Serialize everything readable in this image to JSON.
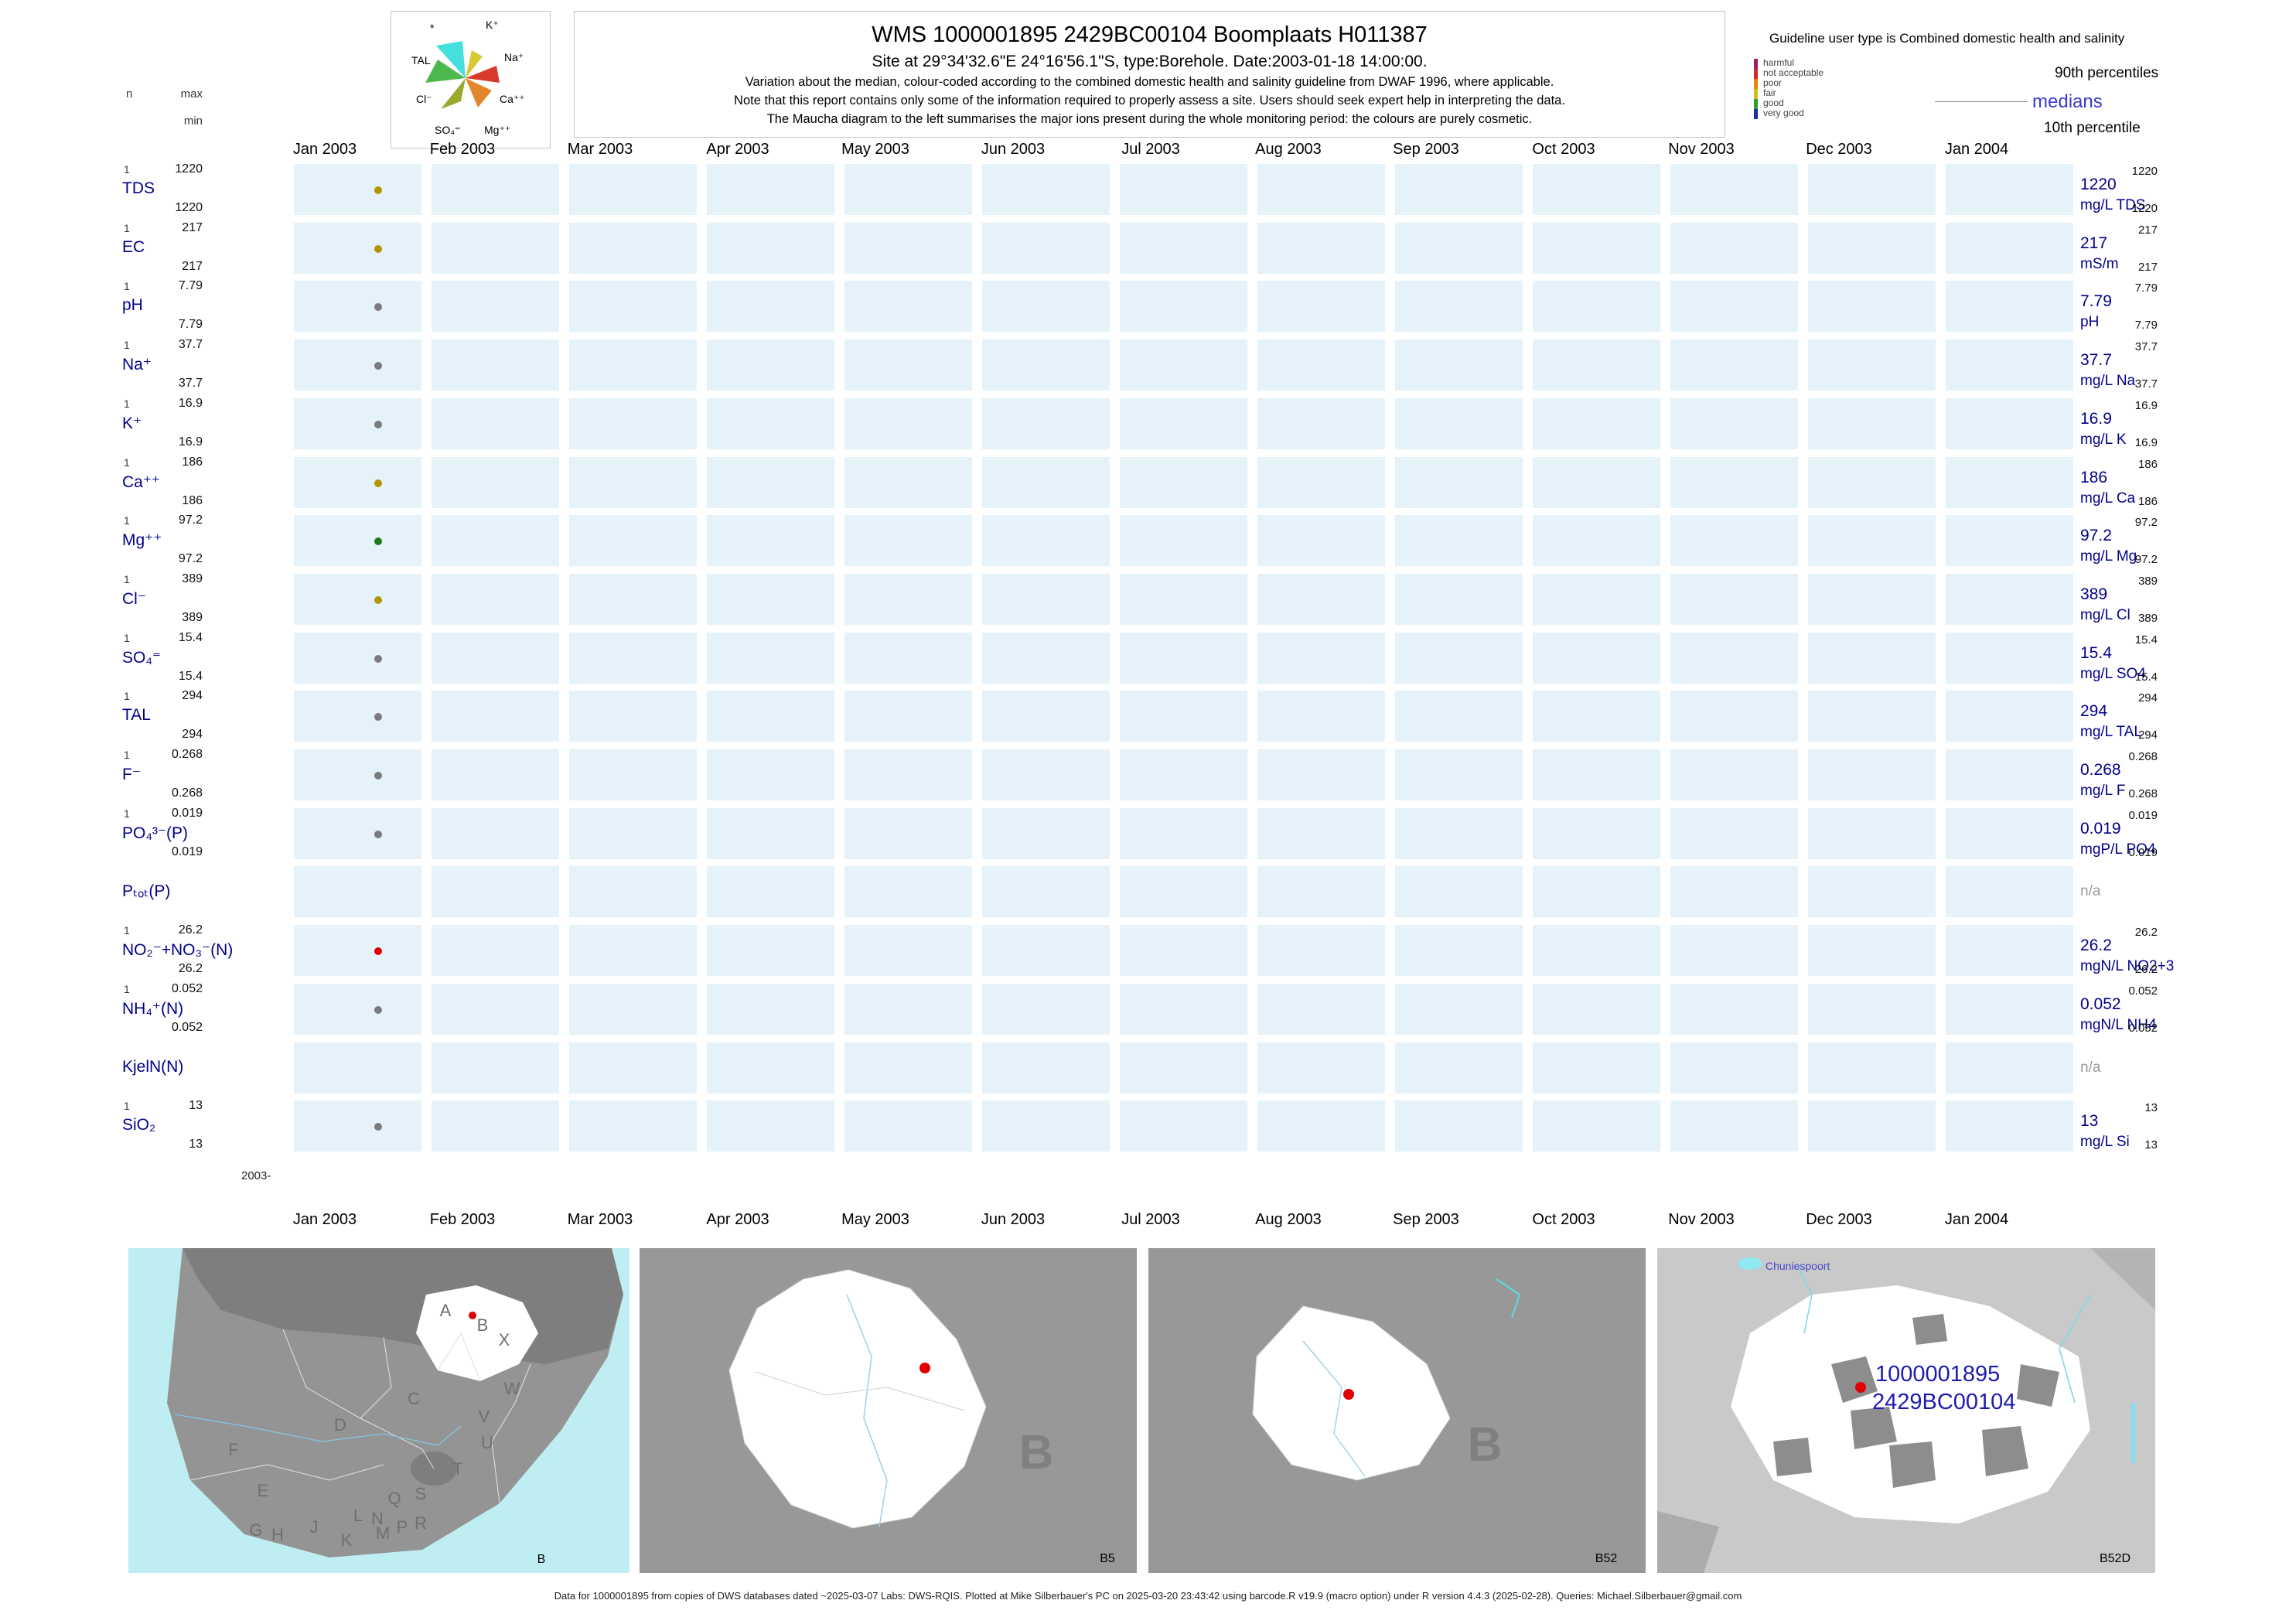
{
  "header": {
    "title": "WMS 1000001895 2429BC00104 Boomplaats H011387",
    "subtitle": "Site at 29°34'32.6\"E 24°16'56.1\"S, type:Borehole. Date:2003-01-18 14:00:00.",
    "note1": "Variation about the median,  colour-coded according to the combined domestic health and salinity guideline from DWAF 1996, where applicable.",
    "note2": "Note that this report contains only some of the information required to properly assess a site. Users should seek expert help in interpreting the data.",
    "note3": "The Maucha diagram to the left summarises the major ions present during the whole monitoring period: the colours are purely cosmetic."
  },
  "maucha": {
    "labels": {
      "star": "*",
      "K": "K⁺",
      "TAL": "TAL",
      "Na": "Na⁺",
      "Cl": "Cl⁻",
      "Ca": "Ca⁺⁺",
      "SO4": "SO₄⁼",
      "Mg": "Mg⁺⁺"
    }
  },
  "legend": {
    "guideline": "Guideline user type is Combined domestic health and salinity",
    "categories": [
      {
        "label": "harmful",
        "color": "#9e1f63"
      },
      {
        "label": "not acceptable",
        "color": "#d62728"
      },
      {
        "label": "poor",
        "color": "#e8820c"
      },
      {
        "label": "fair",
        "color": "#cfc01f"
      },
      {
        "label": "good",
        "color": "#2ca02c"
      },
      {
        "label": "very good",
        "color": "#1f2f9e"
      }
    ],
    "p90": "90th percentiles",
    "median": "medians",
    "p10": "10th percentile"
  },
  "axis": {
    "months": [
      "Jan 2003",
      "Feb 2003",
      "Mar 2003",
      "Apr 2003",
      "May 2003",
      "Jun 2003",
      "Jul 2003",
      "Aug 2003",
      "Sep 2003",
      "Oct 2003",
      "Nov 2003",
      "Dec 2003",
      "Jan 2004"
    ],
    "origin_label": "2003-",
    "col_n": "n",
    "col_max": "max",
    "col_min": "min"
  },
  "na_label": "n/a",
  "rows": [
    {
      "label": "TDS",
      "n": "1",
      "max": "1220",
      "min": "1220",
      "p90": "1220",
      "median": "1220",
      "p10": "1220",
      "unit": "mg/L TDS",
      "dot": "#b39500",
      "na": false
    },
    {
      "label": "EC",
      "n": "1",
      "max": "217",
      "min": "217",
      "p90": "217",
      "median": "217",
      "p10": "217",
      "unit": "mS/m",
      "dot": "#b39500",
      "na": false
    },
    {
      "label": "pH",
      "n": "1",
      "max": "7.79",
      "min": "7.79",
      "p90": "7.79",
      "median": "7.79",
      "p10": "7.79",
      "unit": "pH",
      "dot": "#7a7a7a",
      "na": false
    },
    {
      "label": "Na⁺",
      "n": "1",
      "max": "37.7",
      "min": "37.7",
      "p90": "37.7",
      "median": "37.7",
      "p10": "37.7",
      "unit": "mg/L Na",
      "dot": "#7a7a7a",
      "na": false
    },
    {
      "label": "K⁺",
      "n": "1",
      "max": "16.9",
      "min": "16.9",
      "p90": "16.9",
      "median": "16.9",
      "p10": "16.9",
      "unit": "mg/L K",
      "dot": "#7a7a7a",
      "na": false
    },
    {
      "label": "Ca⁺⁺",
      "n": "1",
      "max": "186",
      "min": "186",
      "p90": "186",
      "median": "186",
      "p10": "186",
      "unit": "mg/L Ca",
      "dot": "#b39500",
      "na": false
    },
    {
      "label": "Mg⁺⁺",
      "n": "1",
      "max": "97.2",
      "min": "97.2",
      "p90": "97.2",
      "median": "97.2",
      "p10": "97.2",
      "unit": "mg/L Mg",
      "dot": "#1f7a1f",
      "na": false
    },
    {
      "label": "Cl⁻",
      "n": "1",
      "max": "389",
      "min": "389",
      "p90": "389",
      "median": "389",
      "p10": "389",
      "unit": "mg/L Cl",
      "dot": "#b39500",
      "na": false
    },
    {
      "label": "SO₄⁼",
      "n": "1",
      "max": "15.4",
      "min": "15.4",
      "p90": "15.4",
      "median": "15.4",
      "p10": "15.4",
      "unit": "mg/L SO4",
      "dot": "#7a7a7a",
      "na": false
    },
    {
      "label": "TAL",
      "n": "1",
      "max": "294",
      "min": "294",
      "p90": "294",
      "median": "294",
      "p10": "294",
      "unit": "mg/L TAL",
      "dot": "#7a7a7a",
      "na": false
    },
    {
      "label": "F⁻",
      "n": "1",
      "max": "0.268",
      "min": "0.268",
      "p90": "0.268",
      "median": "0.268",
      "p10": "0.268",
      "unit": "mg/L F",
      "dot": "#7a7a7a",
      "na": false
    },
    {
      "label": "PO₄³⁻(P)",
      "n": "1",
      "max": "0.019",
      "min": "0.019",
      "p90": "0.019",
      "median": "0.019",
      "p10": "0.019",
      "unit": "mgP/L PO4",
      "dot": "#7a7a7a",
      "na": false
    },
    {
      "label": "Pₜₒₜ(P)",
      "n": "",
      "max": "",
      "min": "",
      "p90": "",
      "median": "",
      "p10": "",
      "unit": "",
      "dot": "",
      "na": true
    },
    {
      "label": "NO₂⁻+NO₃⁻(N)",
      "n": "1",
      "max": "26.2",
      "min": "26.2",
      "p90": "26.2",
      "median": "26.2",
      "p10": "26.2",
      "unit": "mgN/L NO2+3",
      "dot": "#e00000",
      "na": false
    },
    {
      "label": "NH₄⁺(N)",
      "n": "1",
      "max": "0.052",
      "min": "0.052",
      "p90": "0.052",
      "median": "0.052",
      "p10": "0.052",
      "unit": "mgN/L NH4",
      "dot": "#7a7a7a",
      "na": false
    },
    {
      "label": "KjelN(N)",
      "n": "",
      "max": "",
      "min": "",
      "p90": "",
      "median": "",
      "p10": "",
      "unit": "",
      "dot": "",
      "na": true
    },
    {
      "label": "SiO₂",
      "n": "1",
      "max": "13",
      "min": "13",
      "p90": "13",
      "median": "13",
      "p10": "13",
      "unit": "mg/L Si",
      "dot": "#7a7a7a",
      "na": false
    }
  ],
  "maps": {
    "sa_letters": [
      "A",
      "B",
      "C",
      "D",
      "E",
      "F",
      "G",
      "H",
      "J",
      "K",
      "L",
      "M",
      "N",
      "P",
      "Q",
      "R",
      "S",
      "T",
      "U",
      "V",
      "W",
      "X"
    ],
    "watermark": "B",
    "panels": [
      {
        "label": "B"
      },
      {
        "label": "B5"
      },
      {
        "label": "B52"
      },
      {
        "label": "B52D"
      }
    ],
    "site_ids": [
      "1000001895",
      "2429BC00104"
    ],
    "town": "Chuniespoort"
  },
  "footer": "Data for 1000001895 from copies of DWS databases dated ~2025-03-07 Labs: DWS-RQIS. Plotted at Mike Silberbauer's PC on 2025-03-20 23:43:42 using barcode.R v19.9 (macro option) under R version 4.4.3 (2025-02-28). Queries: Michael.Silberbauer@gmail.com",
  "chart_data": {
    "type": "scatter",
    "title": "WMS 1000001895 2429BC00104 Boomplaats H011387",
    "site_type": "Borehole",
    "sample_datetime": "2003-01-18 14:00:00",
    "x_axis_range": [
      "Jan 2003",
      "Jan 2004"
    ],
    "n_samples": 1,
    "series": [
      {
        "name": "TDS",
        "unit": "mg/L TDS",
        "n": 1,
        "min": 1220,
        "max": 1220,
        "median": 1220,
        "p90": 1220,
        "p10": 1220,
        "points": [
          {
            "date": "2003-01-18",
            "value": 1220
          }
        ]
      },
      {
        "name": "EC",
        "unit": "mS/m",
        "n": 1,
        "min": 217,
        "max": 217,
        "median": 217,
        "p90": 217,
        "p10": 217,
        "points": [
          {
            "date": "2003-01-18",
            "value": 217
          }
        ]
      },
      {
        "name": "pH",
        "unit": "pH",
        "n": 1,
        "min": 7.79,
        "max": 7.79,
        "median": 7.79,
        "p90": 7.79,
        "p10": 7.79,
        "points": [
          {
            "date": "2003-01-18",
            "value": 7.79
          }
        ]
      },
      {
        "name": "Na",
        "unit": "mg/L Na",
        "n": 1,
        "min": 37.7,
        "max": 37.7,
        "median": 37.7,
        "p90": 37.7,
        "p10": 37.7,
        "points": [
          {
            "date": "2003-01-18",
            "value": 37.7
          }
        ]
      },
      {
        "name": "K",
        "unit": "mg/L K",
        "n": 1,
        "min": 16.9,
        "max": 16.9,
        "median": 16.9,
        "p90": 16.9,
        "p10": 16.9,
        "points": [
          {
            "date": "2003-01-18",
            "value": 16.9
          }
        ]
      },
      {
        "name": "Ca",
        "unit": "mg/L Ca",
        "n": 1,
        "min": 186,
        "max": 186,
        "median": 186,
        "p90": 186,
        "p10": 186,
        "points": [
          {
            "date": "2003-01-18",
            "value": 186
          }
        ]
      },
      {
        "name": "Mg",
        "unit": "mg/L Mg",
        "n": 1,
        "min": 97.2,
        "max": 97.2,
        "median": 97.2,
        "p90": 97.2,
        "p10": 97.2,
        "points": [
          {
            "date": "2003-01-18",
            "value": 97.2
          }
        ]
      },
      {
        "name": "Cl",
        "unit": "mg/L Cl",
        "n": 1,
        "min": 389,
        "max": 389,
        "median": 389,
        "p90": 389,
        "p10": 389,
        "points": [
          {
            "date": "2003-01-18",
            "value": 389
          }
        ]
      },
      {
        "name": "SO4",
        "unit": "mg/L SO4",
        "n": 1,
        "min": 15.4,
        "max": 15.4,
        "median": 15.4,
        "p90": 15.4,
        "p10": 15.4,
        "points": [
          {
            "date": "2003-01-18",
            "value": 15.4
          }
        ]
      },
      {
        "name": "TAL",
        "unit": "mg/L TAL",
        "n": 1,
        "min": 294,
        "max": 294,
        "median": 294,
        "p90": 294,
        "p10": 294,
        "points": [
          {
            "date": "2003-01-18",
            "value": 294
          }
        ]
      },
      {
        "name": "F",
        "unit": "mg/L F",
        "n": 1,
        "min": 0.268,
        "max": 0.268,
        "median": 0.268,
        "p90": 0.268,
        "p10": 0.268,
        "points": [
          {
            "date": "2003-01-18",
            "value": 0.268
          }
        ]
      },
      {
        "name": "PO4-P",
        "unit": "mgP/L PO4",
        "n": 1,
        "min": 0.019,
        "max": 0.019,
        "median": 0.019,
        "p90": 0.019,
        "p10": 0.019,
        "points": [
          {
            "date": "2003-01-18",
            "value": 0.019
          }
        ]
      },
      {
        "name": "Ptot-P",
        "unit": "",
        "n": 0,
        "points": []
      },
      {
        "name": "NO2+NO3-N",
        "unit": "mgN/L NO2+3",
        "n": 1,
        "min": 26.2,
        "max": 26.2,
        "median": 26.2,
        "p90": 26.2,
        "p10": 26.2,
        "points": [
          {
            "date": "2003-01-18",
            "value": 26.2
          }
        ]
      },
      {
        "name": "NH4-N",
        "unit": "mgN/L NH4",
        "n": 1,
        "min": 0.052,
        "max": 0.052,
        "median": 0.052,
        "p90": 0.052,
        "p10": 0.052,
        "points": [
          {
            "date": "2003-01-18",
            "value": 0.052
          }
        ]
      },
      {
        "name": "KjelN-N",
        "unit": "",
        "n": 0,
        "points": []
      },
      {
        "name": "SiO2",
        "unit": "mg/L Si",
        "n": 1,
        "min": 13,
        "max": 13,
        "median": 13,
        "p90": 13,
        "p10": 13,
        "points": [
          {
            "date": "2003-01-18",
            "value": 13
          }
        ]
      }
    ]
  }
}
